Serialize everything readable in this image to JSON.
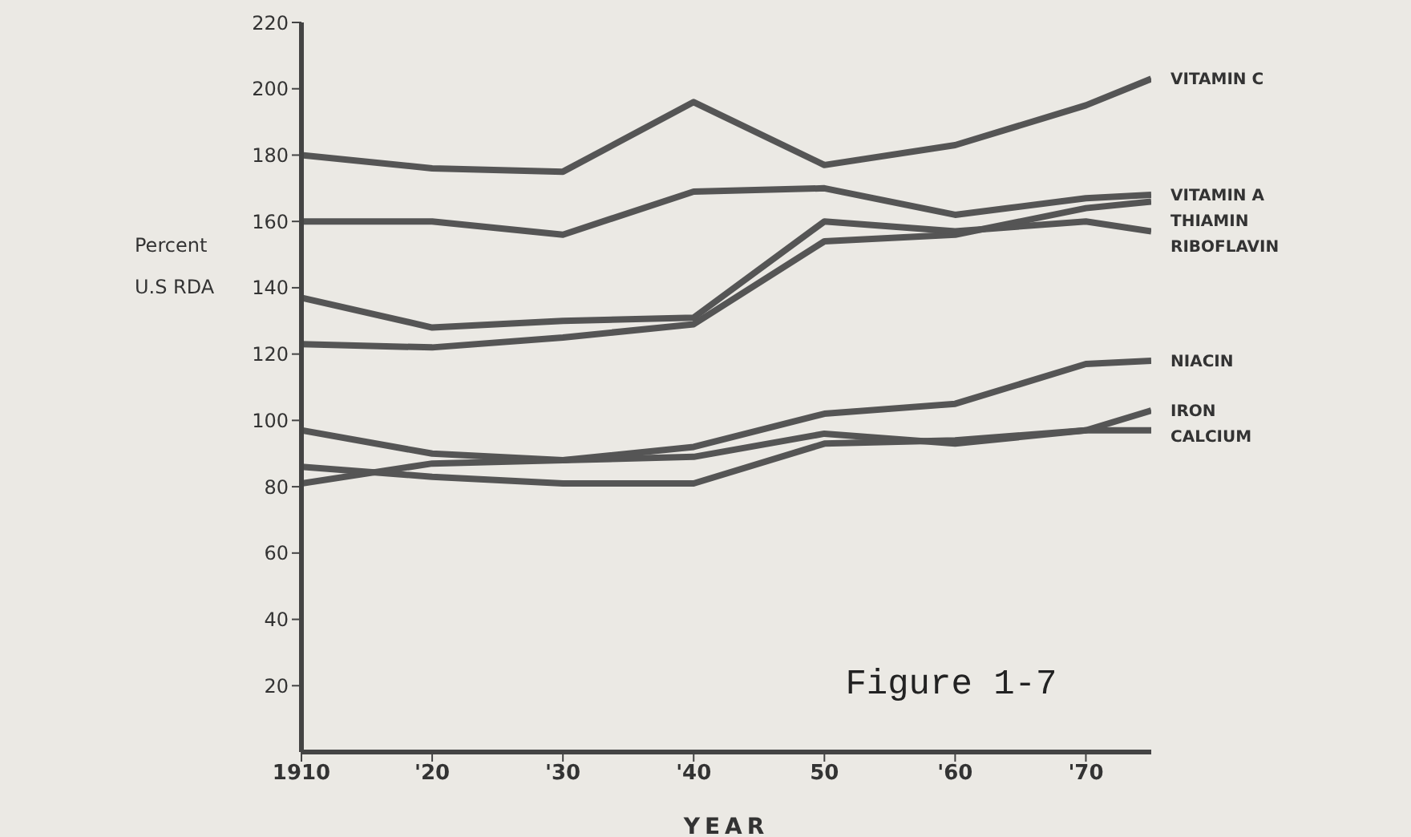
{
  "chart_data": {
    "type": "line",
    "annotations": [
      "Figure 1-7"
    ],
    "xlabel": "YEAR",
    "ylabel": "Percent\nU.S RDA",
    "x": [
      1910,
      1920,
      1930,
      1940,
      1950,
      1960,
      1970,
      1975
    ],
    "xlim": [
      1910,
      1975
    ],
    "xticks": [
      1910,
      {
        "value": 1920,
        "label": "'20"
      },
      {
        "value": 1930,
        "label": "'30"
      },
      {
        "value": 1940,
        "label": "'40"
      },
      {
        "value": 1950,
        "label": "50"
      },
      {
        "value": 1960,
        "label": "'60"
      },
      {
        "value": 1970,
        "label": "'70"
      }
    ],
    "ylim": [
      0,
      220
    ],
    "yticks": [
      20,
      40,
      60,
      80,
      100,
      120,
      140,
      160,
      180,
      200,
      220
    ],
    "grid": false,
    "legend": false,
    "marker": "none",
    "line_style": "solid",
    "series": [
      {
        "name": "VITAMIN C",
        "color": "#555555",
        "values": [
          180,
          176,
          175,
          196,
          177,
          183,
          195,
          203
        ]
      },
      {
        "name": "VITAMIN A",
        "color": "#555555",
        "values": [
          160,
          160,
          156,
          169,
          170,
          162,
          167,
          168
        ]
      },
      {
        "name": "THIAMIN",
        "color": "#555555",
        "values": [
          123,
          122,
          125,
          129,
          154,
          156,
          164,
          166
        ]
      },
      {
        "name": "RIBOFLAVIN",
        "color": "#555555",
        "values": [
          137,
          128,
          130,
          131,
          160,
          157,
          160,
          157
        ]
      },
      {
        "name": "NIACIN",
        "color": "#555555",
        "values": [
          97,
          90,
          88,
          92,
          102,
          105,
          117,
          118
        ]
      },
      {
        "name": "IRON",
        "color": "#555555",
        "values": [
          81,
          87,
          88,
          89,
          96,
          93,
          97,
          103
        ]
      },
      {
        "name": "CALCIUM",
        "color": "#555555",
        "values": [
          86,
          83,
          81,
          81,
          93,
          94,
          97,
          97
        ]
      }
    ]
  }
}
